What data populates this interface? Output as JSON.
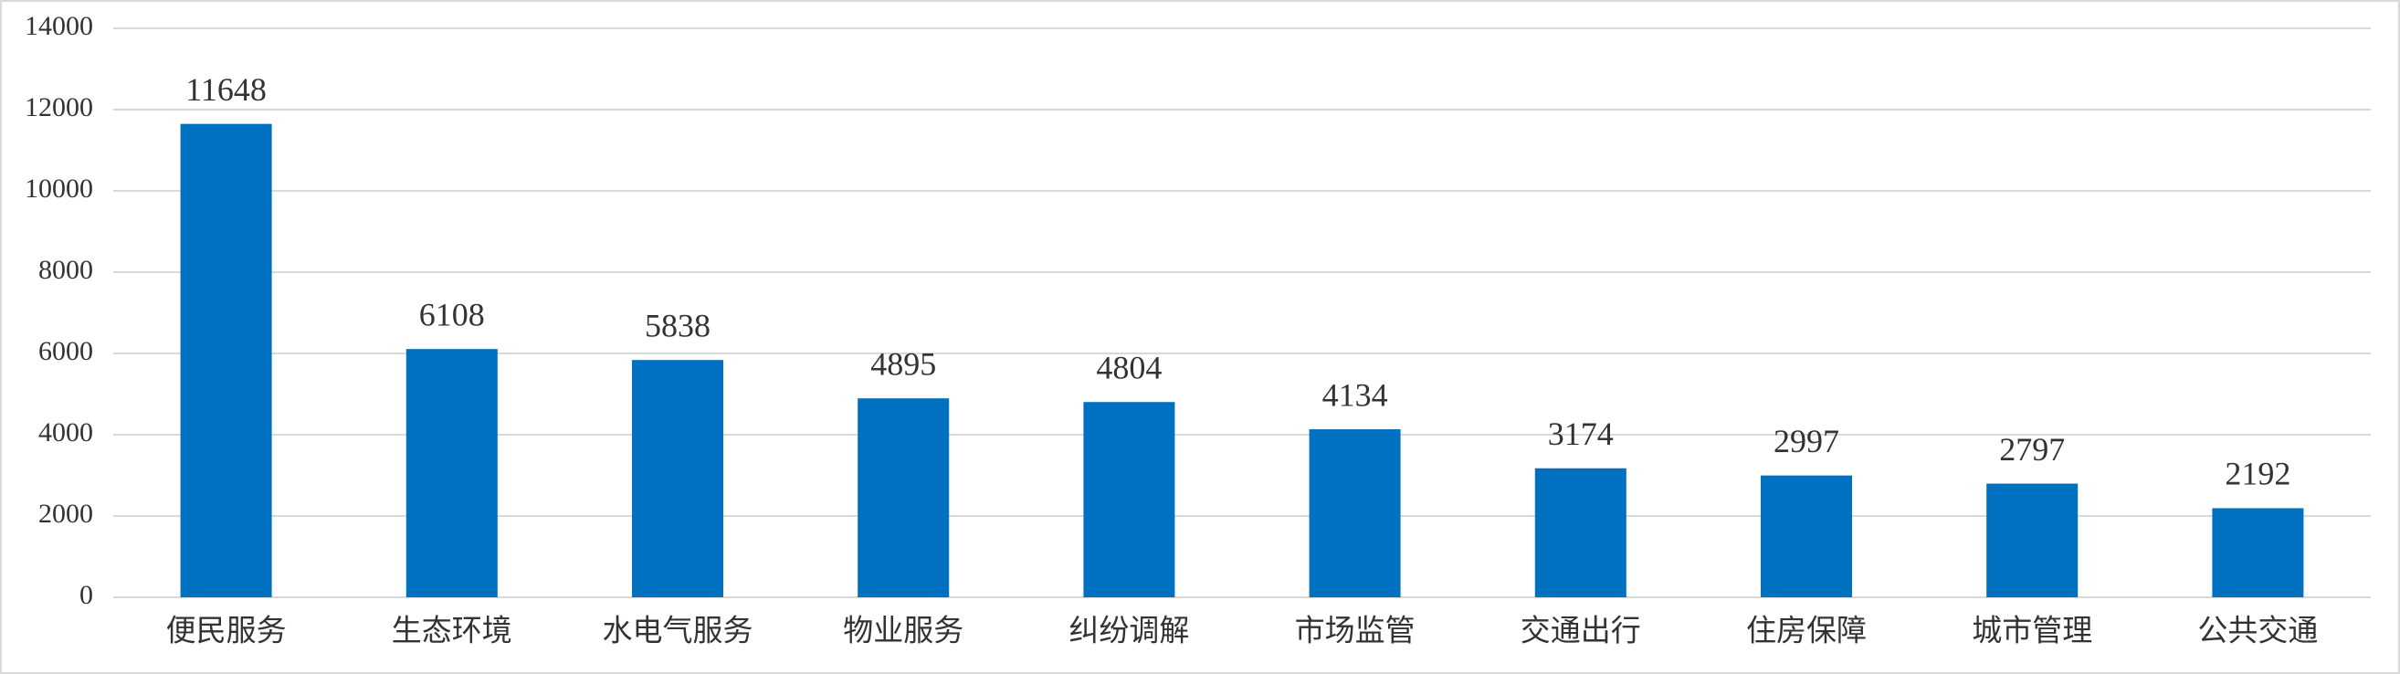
{
  "chart_data": {
    "type": "bar",
    "categories": [
      "便民服务",
      "生态环境",
      "水电气服务",
      "物业服务",
      "纠纷调解",
      "市场监管",
      "交通出行",
      "住房保障",
      "城市管理",
      "公共交通"
    ],
    "values": [
      11648,
      6108,
      5838,
      4895,
      4804,
      4134,
      3174,
      2997,
      2797,
      2192
    ],
    "color": "#0070c0",
    "ylim": [
      0,
      14000
    ],
    "yticks": [
      0,
      2000,
      4000,
      6000,
      8000,
      10000,
      12000,
      14000
    ],
    "grid": true
  }
}
